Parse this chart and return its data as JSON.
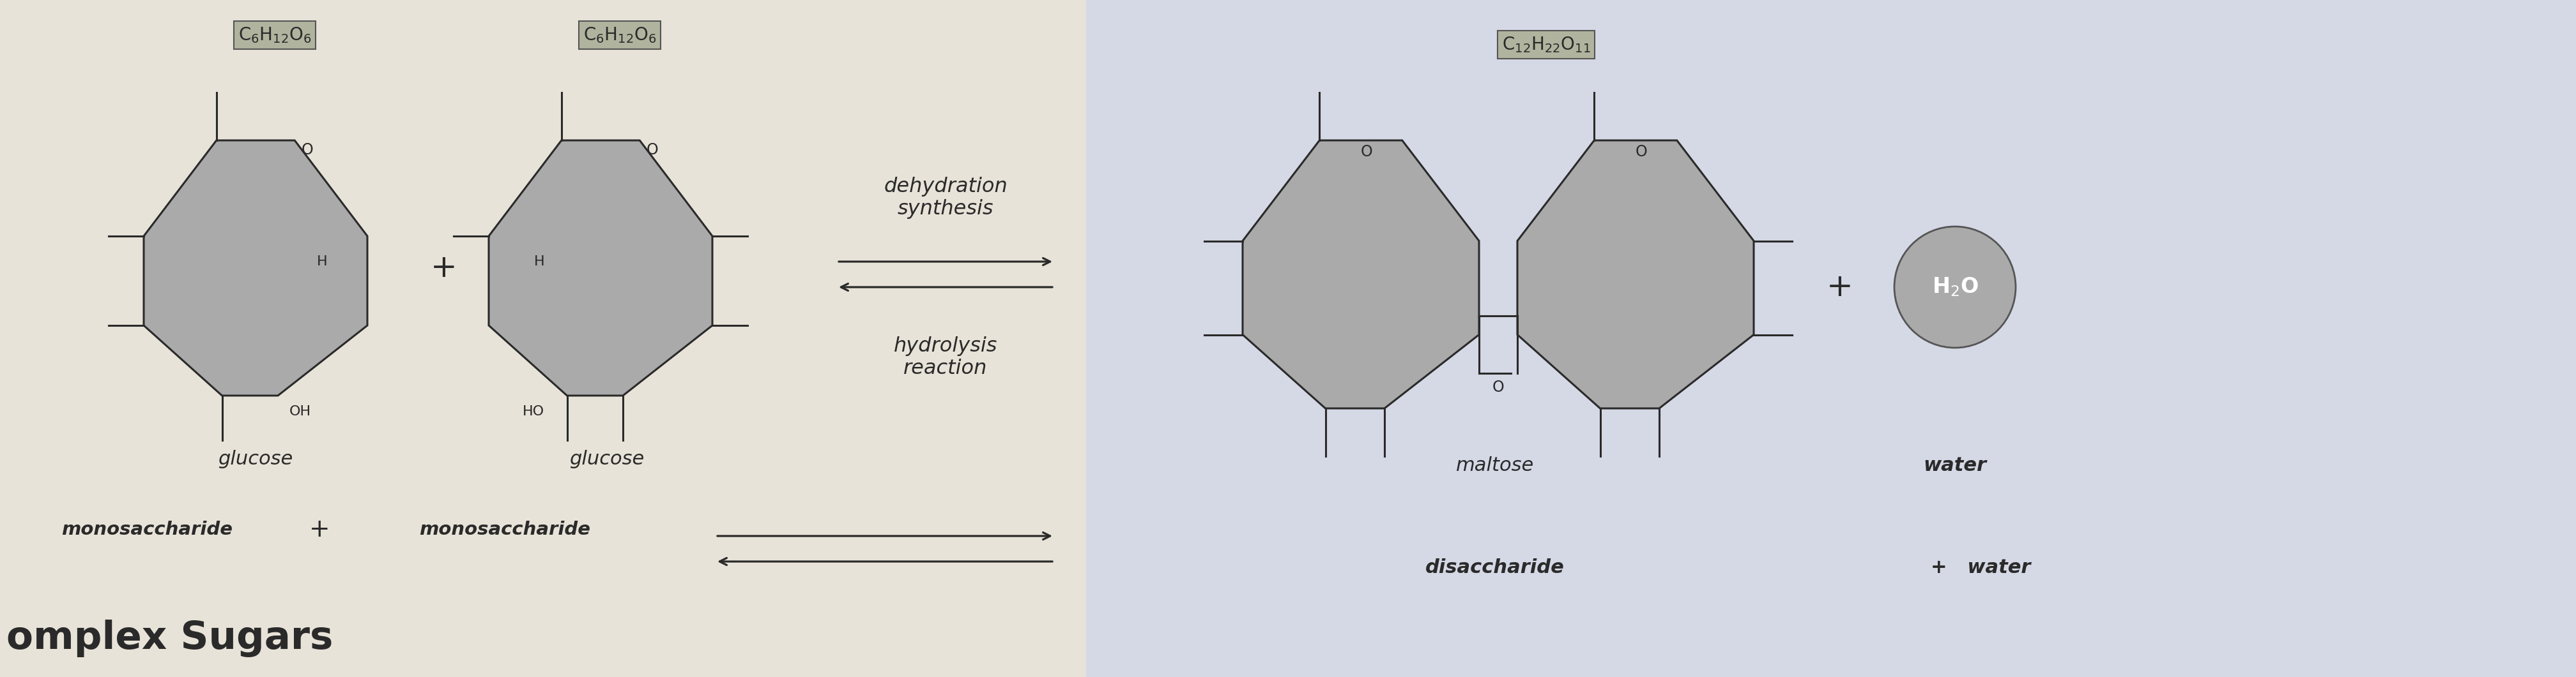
{
  "bg_left_color": "#e8e3d8",
  "bg_right_color": "#d5d8e5",
  "formula1": "C$_6$H$_{12}$O$_6$",
  "formula2": "C$_6$H$_{12}$O$_6$",
  "formula3": "C$_{12}$H$_{22}$O$_{11}$",
  "label_glucose1": "glucose",
  "label_glucose2": "glucose",
  "label_mono1": "monosaccharide",
  "label_mono2": "monosaccharide",
  "label_maltose": "maltose",
  "label_disaccharide": "disaccharide",
  "label_water_symbol": "H$_2$O",
  "label_water1": "water",
  "label_water2": "water",
  "text_dehydration": "dehydration\nsynthesis",
  "text_hydrolysis": "hydrolysis\nreaction",
  "shape_color": "#aaaaaa",
  "text_color": "#2a2a2a",
  "formula_bg": "#b0b49e",
  "formula_edge": "#555555",
  "line_color": "#2a2a2a"
}
